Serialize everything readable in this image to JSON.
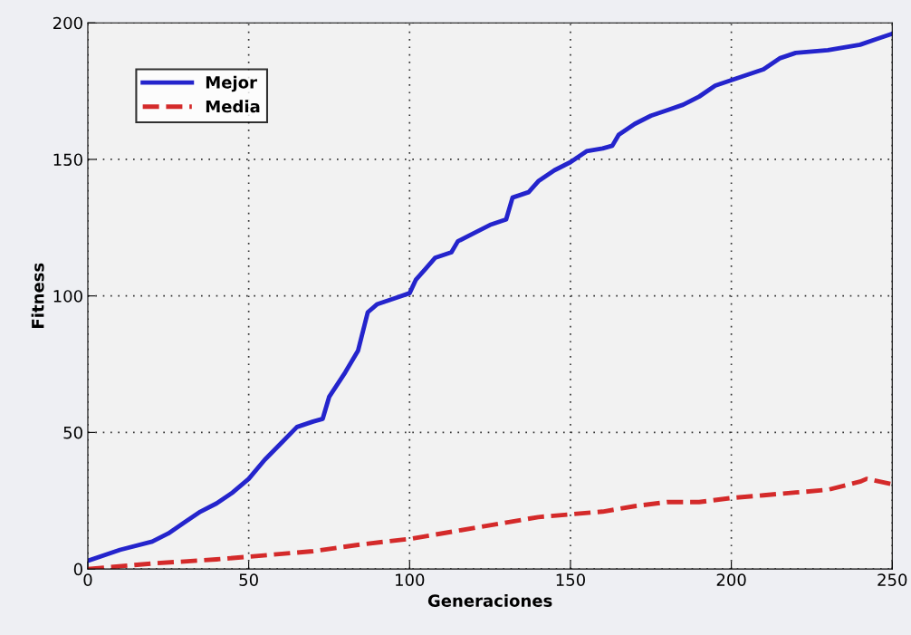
{
  "chart_data": {
    "type": "line",
    "xlabel": "Generaciones",
    "ylabel": "Fitness",
    "xlim": [
      0,
      250
    ],
    "xticks": [
      0,
      50,
      100,
      150,
      200,
      250
    ],
    "ylim": [
      0,
      200
    ],
    "yticks": [
      0,
      50,
      100,
      150,
      200
    ],
    "grid": true,
    "legend": "top left",
    "series": [
      {
        "name": "Mejor",
        "color": "#2424cc",
        "line_style": "solid",
        "x": [
          0,
          10,
          20,
          25,
          30,
          35,
          40,
          45,
          50,
          55,
          60,
          65,
          70,
          73,
          75,
          80,
          84,
          87,
          90,
          95,
          100,
          102,
          105,
          108,
          113,
          115,
          120,
          125,
          130,
          132,
          137,
          140,
          145,
          150,
          155,
          160,
          163,
          165,
          170,
          175,
          180,
          185,
          190,
          195,
          200,
          205,
          210,
          215,
          220,
          230,
          240,
          245,
          250
        ],
        "values": [
          3,
          7,
          10,
          13,
          17,
          21,
          24,
          28,
          33,
          40,
          46,
          52,
          54,
          55,
          63,
          72,
          80,
          94,
          97,
          99,
          101,
          106,
          110,
          114,
          116,
          120,
          123,
          126,
          128,
          136,
          138,
          142,
          146,
          149,
          153,
          154,
          155,
          159,
          163,
          166,
          168,
          170,
          173,
          177,
          179,
          181,
          183,
          187,
          189,
          190,
          192,
          194,
          196
        ]
      },
      {
        "name": "Media",
        "color": "#d42a2a",
        "line_style": "dashed",
        "x": [
          0,
          20,
          40,
          50,
          70,
          85,
          100,
          120,
          130,
          140,
          150,
          160,
          170,
          180,
          190,
          200,
          210,
          220,
          230,
          240,
          242,
          250
        ],
        "values": [
          0,
          2,
          3.5,
          4.5,
          6.5,
          9,
          11,
          15,
          17,
          19,
          20,
          21,
          23,
          24.5,
          24.5,
          26,
          27,
          28,
          29,
          32,
          33,
          31
        ]
      }
    ]
  }
}
